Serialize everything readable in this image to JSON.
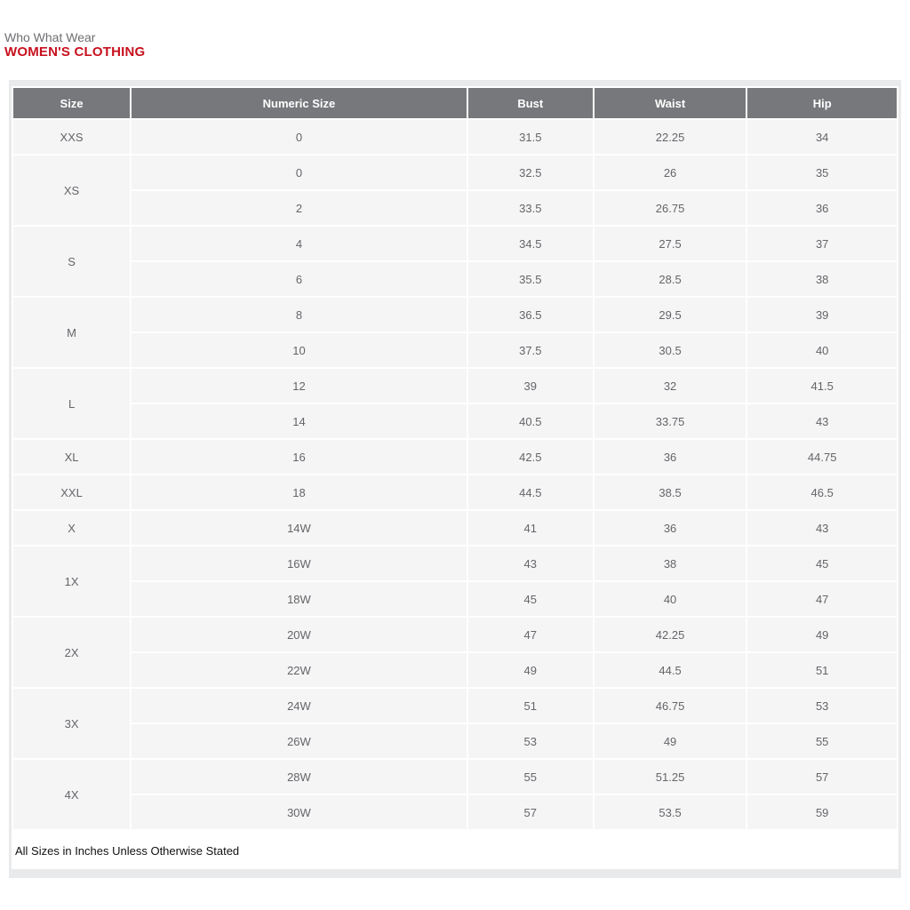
{
  "header": {
    "brand": "Who What Wear",
    "title": "WOMEN'S CLOTHING"
  },
  "table": {
    "columns": [
      "Size",
      "Numeric Size",
      "Bust",
      "Waist",
      "Hip"
    ],
    "groups": [
      {
        "size": "XXS",
        "rows": [
          {
            "numeric_size": "0",
            "bust": "31.5",
            "waist": "22.25",
            "hip": "34"
          }
        ]
      },
      {
        "size": "XS",
        "rows": [
          {
            "numeric_size": "0",
            "bust": "32.5",
            "waist": "26",
            "hip": "35"
          },
          {
            "numeric_size": "2",
            "bust": "33.5",
            "waist": "26.75",
            "hip": "36"
          }
        ]
      },
      {
        "size": "S",
        "rows": [
          {
            "numeric_size": "4",
            "bust": "34.5",
            "waist": "27.5",
            "hip": "37"
          },
          {
            "numeric_size": "6",
            "bust": "35.5",
            "waist": "28.5",
            "hip": "38"
          }
        ]
      },
      {
        "size": "M",
        "rows": [
          {
            "numeric_size": "8",
            "bust": "36.5",
            "waist": "29.5",
            "hip": "39"
          },
          {
            "numeric_size": "10",
            "bust": "37.5",
            "waist": "30.5",
            "hip": "40"
          }
        ]
      },
      {
        "size": "L",
        "rows": [
          {
            "numeric_size": "12",
            "bust": "39",
            "waist": "32",
            "hip": "41.5"
          },
          {
            "numeric_size": "14",
            "bust": "40.5",
            "waist": "33.75",
            "hip": "43"
          }
        ]
      },
      {
        "size": "XL",
        "rows": [
          {
            "numeric_size": "16",
            "bust": "42.5",
            "waist": "36",
            "hip": "44.75"
          }
        ]
      },
      {
        "size": "XXL",
        "rows": [
          {
            "numeric_size": "18",
            "bust": "44.5",
            "waist": "38.5",
            "hip": "46.5"
          }
        ]
      },
      {
        "size": "X",
        "rows": [
          {
            "numeric_size": "14W",
            "bust": "41",
            "waist": "36",
            "hip": "43"
          }
        ]
      },
      {
        "size": "1X",
        "rows": [
          {
            "numeric_size": "16W",
            "bust": "43",
            "waist": "38",
            "hip": "45"
          },
          {
            "numeric_size": "18W",
            "bust": "45",
            "waist": "40",
            "hip": "47"
          }
        ]
      },
      {
        "size": "2X",
        "rows": [
          {
            "numeric_size": "20W",
            "bust": "47",
            "waist": "42.25",
            "hip": "49"
          },
          {
            "numeric_size": "22W",
            "bust": "49",
            "waist": "44.5",
            "hip": "51"
          }
        ]
      },
      {
        "size": "3X",
        "rows": [
          {
            "numeric_size": "24W",
            "bust": "51",
            "waist": "46.75",
            "hip": "53"
          },
          {
            "numeric_size": "26W",
            "bust": "53",
            "waist": "49",
            "hip": "55"
          }
        ]
      },
      {
        "size": "4X",
        "rows": [
          {
            "numeric_size": "28W",
            "bust": "55",
            "waist": "51.25",
            "hip": "57"
          },
          {
            "numeric_size": "30W",
            "bust": "57",
            "waist": "53.5",
            "hip": "59"
          }
        ]
      }
    ]
  },
  "footnote": "All Sizes in Inches Unless Otherwise Stated",
  "colors": {
    "title_red": "#c8101e",
    "brand_gray": "#6d6e71",
    "header_cell_bg": "#77787b",
    "header_cell_text": "#ffffff",
    "body_cell_bg": "#f5f5f6",
    "body_cell_text": "#646568",
    "container_bg": "#e9eaeb"
  }
}
